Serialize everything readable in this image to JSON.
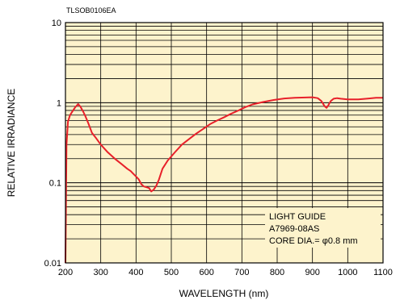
{
  "image_code": "TLSOB0106EA",
  "chart_data": {
    "type": "line",
    "xlabel": "WAVELENGTH (nm)",
    "ylabel": "RELATIVE IRRADIANCE",
    "xlim": [
      200,
      1100
    ],
    "ylim": [
      0.01,
      10
    ],
    "yscale": "log",
    "grid": true,
    "x_ticks": [
      "200",
      "300",
      "400",
      "500",
      "600",
      "700",
      "800",
      "900",
      "1000",
      "1100"
    ],
    "y_ticks": [
      "0.01",
      "0.1",
      "1",
      "10"
    ],
    "annotation": [
      "LIGHT GUIDE",
      "A7969-08AS",
      "CORE DIA.= φ0.8 mm"
    ],
    "colors": {
      "background": "#fdf3cc",
      "line": "#e8202a",
      "grid": "#000000"
    },
    "series": [
      {
        "x": [
          200,
          203,
          207,
          213,
          220,
          228,
          236,
          242,
          250,
          257,
          265,
          275,
          285,
          300,
          320,
          340,
          360,
          375,
          385,
          392,
          400,
          408,
          415,
          422,
          430,
          437,
          443,
          450,
          458,
          465,
          475,
          490,
          510,
          530,
          550,
          570,
          590,
          610,
          630,
          650,
          670,
          690,
          710,
          730,
          760,
          790,
          820,
          850,
          880,
          900,
          915,
          925,
          935,
          940,
          945,
          952,
          960,
          970,
          980,
          1000,
          1030,
          1060,
          1080,
          1100
        ],
        "y": [
          0.01,
          0.3,
          0.58,
          0.7,
          0.78,
          0.88,
          0.96,
          0.9,
          0.78,
          0.67,
          0.55,
          0.42,
          0.37,
          0.3,
          0.24,
          0.2,
          0.17,
          0.15,
          0.14,
          0.13,
          0.12,
          0.11,
          0.096,
          0.09,
          0.088,
          0.086,
          0.078,
          0.082,
          0.093,
          0.11,
          0.15,
          0.19,
          0.24,
          0.3,
          0.35,
          0.41,
          0.47,
          0.54,
          0.6,
          0.66,
          0.73,
          0.8,
          0.88,
          0.95,
          1.02,
          1.08,
          1.13,
          1.15,
          1.16,
          1.17,
          1.14,
          1.05,
          0.9,
          0.86,
          0.93,
          1.05,
          1.12,
          1.14,
          1.12,
          1.1,
          1.1,
          1.13,
          1.15,
          1.15
        ]
      }
    ]
  }
}
